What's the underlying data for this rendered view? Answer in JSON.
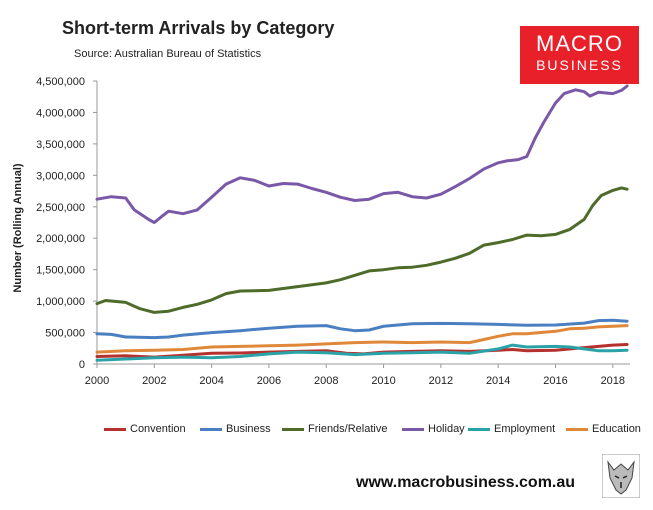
{
  "header": {
    "title": "Short-term Arrivals by Category",
    "source": "Source: Australian Bureau of Statistics"
  },
  "logo": {
    "line1": "MACRO",
    "line2": "BUSINESS",
    "color": "#e8202a"
  },
  "footer": {
    "website": "www.macrobusiness.com.au"
  },
  "chart_data": {
    "type": "line",
    "ylabel": "Number (Rolling Annual)",
    "xlabel": "",
    "xlim": [
      2000,
      2018.6
    ],
    "ylim": [
      0,
      4500000
    ],
    "x_ticks": [
      "2000",
      "2002",
      "2004",
      "2006",
      "2008",
      "2010",
      "2012",
      "2014",
      "2016",
      "2018"
    ],
    "y_ticks": [
      "0",
      "500,000",
      "1,000,000",
      "1,500,000",
      "2,000,000",
      "2,500,000",
      "3,000,000",
      "3,500,000",
      "4,000,000",
      "4,500,000"
    ],
    "grid": false,
    "legend_position": "bottom",
    "series": [
      {
        "name": "Convention",
        "color": "#b5312d",
        "points": [
          [
            2000,
            120000
          ],
          [
            2001,
            130000
          ],
          [
            2002,
            110000
          ],
          [
            2003,
            140000
          ],
          [
            2004,
            170000
          ],
          [
            2005,
            175000
          ],
          [
            2006,
            190000
          ],
          [
            2007,
            200000
          ],
          [
            2008,
            210000
          ],
          [
            2008.7,
            170000
          ],
          [
            2009.3,
            160000
          ],
          [
            2010,
            190000
          ],
          [
            2011,
            200000
          ],
          [
            2012,
            210000
          ],
          [
            2013,
            200000
          ],
          [
            2014,
            220000
          ],
          [
            2014.5,
            230000
          ],
          [
            2015,
            210000
          ],
          [
            2016,
            220000
          ],
          [
            2017,
            260000
          ],
          [
            2018,
            300000
          ],
          [
            2018.5,
            310000
          ]
        ]
      },
      {
        "name": "Business",
        "color": "#4a7fc1",
        "points": [
          [
            2000,
            480000
          ],
          [
            2000.5,
            470000
          ],
          [
            2001,
            430000
          ],
          [
            2002,
            420000
          ],
          [
            2002.5,
            430000
          ],
          [
            2003,
            460000
          ],
          [
            2004,
            500000
          ],
          [
            2005,
            530000
          ],
          [
            2006,
            570000
          ],
          [
            2007,
            600000
          ],
          [
            2008,
            610000
          ],
          [
            2008.5,
            560000
          ],
          [
            2009,
            530000
          ],
          [
            2009.5,
            540000
          ],
          [
            2010,
            600000
          ],
          [
            2011,
            640000
          ],
          [
            2012,
            645000
          ],
          [
            2013,
            640000
          ],
          [
            2014,
            630000
          ],
          [
            2015,
            615000
          ],
          [
            2016,
            620000
          ],
          [
            2017,
            650000
          ],
          [
            2017.5,
            690000
          ],
          [
            2018,
            695000
          ],
          [
            2018.5,
            680000
          ]
        ]
      },
      {
        "name": "Friends/Relative",
        "color": "#4e6b2a",
        "points": [
          [
            2000,
            960000
          ],
          [
            2000.3,
            1010000
          ],
          [
            2001,
            980000
          ],
          [
            2001.5,
            880000
          ],
          [
            2002,
            820000
          ],
          [
            2002.5,
            840000
          ],
          [
            2003,
            900000
          ],
          [
            2003.5,
            950000
          ],
          [
            2004,
            1020000
          ],
          [
            2004.5,
            1120000
          ],
          [
            2005,
            1160000
          ],
          [
            2006,
            1170000
          ],
          [
            2007,
            1230000
          ],
          [
            2008,
            1290000
          ],
          [
            2008.5,
            1340000
          ],
          [
            2009,
            1410000
          ],
          [
            2009.5,
            1480000
          ],
          [
            2010,
            1500000
          ],
          [
            2010.5,
            1530000
          ],
          [
            2011,
            1540000
          ],
          [
            2011.5,
            1570000
          ],
          [
            2012,
            1620000
          ],
          [
            2012.5,
            1680000
          ],
          [
            2013,
            1760000
          ],
          [
            2013.5,
            1890000
          ],
          [
            2014,
            1930000
          ],
          [
            2014.5,
            1980000
          ],
          [
            2015,
            2050000
          ],
          [
            2015.5,
            2040000
          ],
          [
            2016,
            2060000
          ],
          [
            2016.5,
            2140000
          ],
          [
            2017,
            2300000
          ],
          [
            2017.3,
            2520000
          ],
          [
            2017.6,
            2680000
          ],
          [
            2018,
            2760000
          ],
          [
            2018.3,
            2800000
          ],
          [
            2018.5,
            2780000
          ]
        ]
      },
      {
        "name": "Holiday",
        "color": "#7a58a8",
        "points": [
          [
            2000,
            2620000
          ],
          [
            2000.5,
            2660000
          ],
          [
            2001,
            2640000
          ],
          [
            2001.3,
            2450000
          ],
          [
            2001.8,
            2300000
          ],
          [
            2002,
            2250000
          ],
          [
            2002.3,
            2360000
          ],
          [
            2002.5,
            2430000
          ],
          [
            2003,
            2390000
          ],
          [
            2003.5,
            2450000
          ],
          [
            2004,
            2650000
          ],
          [
            2004.5,
            2860000
          ],
          [
            2005,
            2960000
          ],
          [
            2005.5,
            2920000
          ],
          [
            2006,
            2830000
          ],
          [
            2006.5,
            2870000
          ],
          [
            2007,
            2860000
          ],
          [
            2007.5,
            2790000
          ],
          [
            2008,
            2730000
          ],
          [
            2008.5,
            2650000
          ],
          [
            2009,
            2600000
          ],
          [
            2009.5,
            2620000
          ],
          [
            2010,
            2710000
          ],
          [
            2010.5,
            2730000
          ],
          [
            2011,
            2660000
          ],
          [
            2011.5,
            2640000
          ],
          [
            2012,
            2700000
          ],
          [
            2012.5,
            2820000
          ],
          [
            2013,
            2950000
          ],
          [
            2013.5,
            3100000
          ],
          [
            2014,
            3200000
          ],
          [
            2014.3,
            3230000
          ],
          [
            2014.7,
            3250000
          ],
          [
            2015,
            3300000
          ],
          [
            2015.3,
            3600000
          ],
          [
            2015.6,
            3850000
          ],
          [
            2016,
            4150000
          ],
          [
            2016.3,
            4300000
          ],
          [
            2016.7,
            4360000
          ],
          [
            2017,
            4330000
          ],
          [
            2017.2,
            4260000
          ],
          [
            2017.5,
            4320000
          ],
          [
            2018,
            4300000
          ],
          [
            2018.3,
            4350000
          ],
          [
            2018.5,
            4420000
          ]
        ]
      },
      {
        "name": "Employment",
        "color": "#2aa3a8",
        "points": [
          [
            2000,
            60000
          ],
          [
            2001,
            80000
          ],
          [
            2002,
            100000
          ],
          [
            2003,
            110000
          ],
          [
            2004,
            100000
          ],
          [
            2005,
            120000
          ],
          [
            2006,
            160000
          ],
          [
            2007,
            190000
          ],
          [
            2008,
            180000
          ],
          [
            2009,
            150000
          ],
          [
            2010,
            170000
          ],
          [
            2011,
            180000
          ],
          [
            2012,
            190000
          ],
          [
            2013,
            170000
          ],
          [
            2014,
            240000
          ],
          [
            2014.5,
            300000
          ],
          [
            2015,
            270000
          ],
          [
            2016,
            280000
          ],
          [
            2016.5,
            270000
          ],
          [
            2017,
            240000
          ],
          [
            2017.5,
            210000
          ],
          [
            2018,
            210000
          ],
          [
            2018.5,
            220000
          ]
        ]
      },
      {
        "name": "Education",
        "color": "#e0883a",
        "points": [
          [
            2000,
            190000
          ],
          [
            2001,
            210000
          ],
          [
            2002,
            220000
          ],
          [
            2003,
            230000
          ],
          [
            2004,
            270000
          ],
          [
            2005,
            280000
          ],
          [
            2006,
            290000
          ],
          [
            2007,
            300000
          ],
          [
            2008,
            320000
          ],
          [
            2008.5,
            330000
          ],
          [
            2009,
            340000
          ],
          [
            2010,
            350000
          ],
          [
            2011,
            340000
          ],
          [
            2012,
            350000
          ],
          [
            2013,
            340000
          ],
          [
            2013.5,
            390000
          ],
          [
            2014,
            440000
          ],
          [
            2014.5,
            480000
          ],
          [
            2015,
            480000
          ],
          [
            2016,
            520000
          ],
          [
            2016.5,
            560000
          ],
          [
            2017,
            570000
          ],
          [
            2017.5,
            590000
          ],
          [
            2018,
            600000
          ],
          [
            2018.5,
            610000
          ]
        ]
      }
    ]
  }
}
